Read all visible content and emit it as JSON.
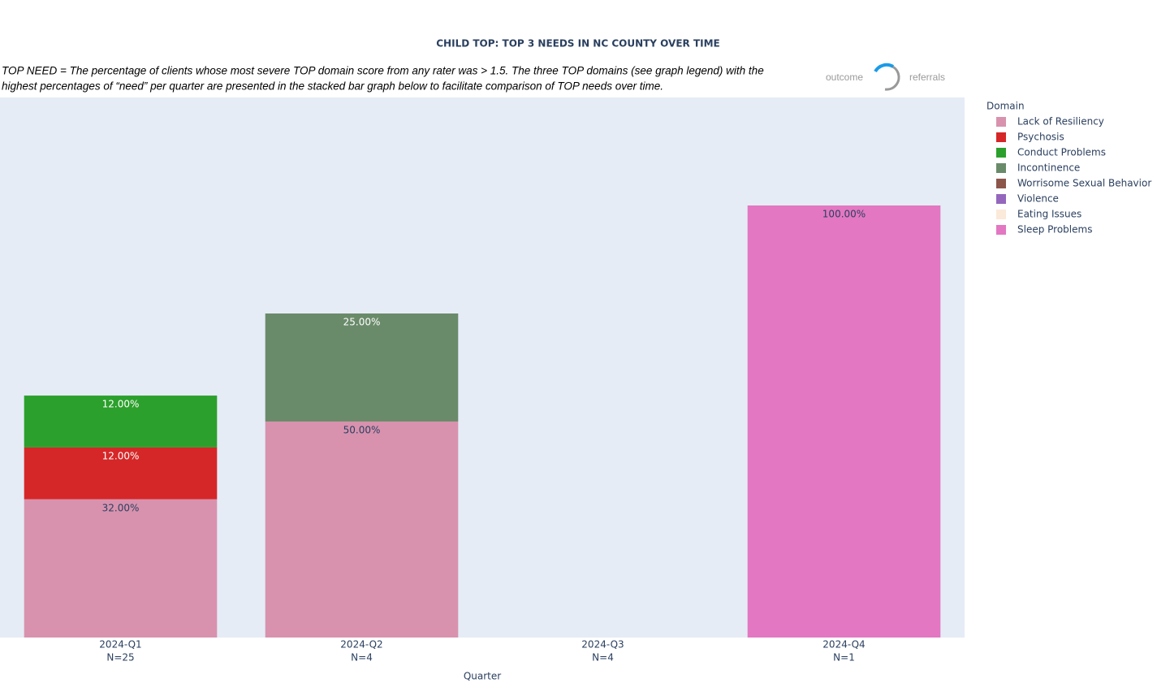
{
  "chart_data": {
    "type": "stacked_bar",
    "title": "CHILD TOP: TOP 3 NEEDS IN NC COUNTY OVER TIME",
    "description": [
      "TOP NEED = The percentage of clients whose most severe TOP domain score from any rater was > 1.5.  The three TOP domains (see graph legend) with the",
      "highest percentages of “need” per quarter are presented in the stacked bar graph below to facilitate comparison of TOP needs over time."
    ],
    "logo": [
      "outcome",
      "referrals"
    ],
    "x_label": "Quarter",
    "legend_title": "Domain",
    "legend_position": "right",
    "categories": [
      "2024-Q1",
      "2024-Q2",
      "2024-Q3",
      "2024-Q4"
    ],
    "category_sublabels": [
      "N=25",
      "N=4",
      "N=4",
      "N=1"
    ],
    "ylim": [
      0,
      125
    ],
    "series": [
      {
        "name": "Lack of Resiliency",
        "color": "#D892AE",
        "values": [
          32,
          50,
          null,
          null
        ],
        "value_labels": [
          "32.00%",
          "50.00%",
          null,
          null
        ]
      },
      {
        "name": "Psychosis",
        "color": "#D62728",
        "values": [
          12,
          null,
          null,
          null
        ],
        "value_labels": [
          "12.00%",
          null,
          null,
          null
        ]
      },
      {
        "name": "Conduct Problems",
        "color": "#2CA02C",
        "values": [
          12,
          null,
          null,
          null
        ],
        "value_labels": [
          "12.00%",
          null,
          null,
          null
        ]
      },
      {
        "name": "Incontinence",
        "color": "#6A8B6A",
        "values": [
          null,
          25,
          null,
          null
        ],
        "value_labels": [
          null,
          "25.00%",
          null,
          null
        ]
      },
      {
        "name": "Worrisome Sexual Behavior",
        "color": "#8C564B",
        "values": [
          null,
          null,
          null,
          null
        ],
        "value_labels": [
          null,
          null,
          null,
          null
        ]
      },
      {
        "name": "Violence",
        "color": "#9467BD",
        "values": [
          null,
          null,
          null,
          null
        ],
        "value_labels": [
          null,
          null,
          null,
          null
        ]
      },
      {
        "name": "Eating Issues",
        "color": "#FBE9D9",
        "values": [
          null,
          null,
          null,
          null
        ],
        "value_labels": [
          null,
          null,
          null,
          null
        ]
      },
      {
        "name": "Sleep Problems",
        "color": "#E377C2",
        "values": [
          null,
          null,
          null,
          100
        ],
        "value_labels": [
          null,
          null,
          null,
          "100.00%"
        ]
      }
    ]
  }
}
